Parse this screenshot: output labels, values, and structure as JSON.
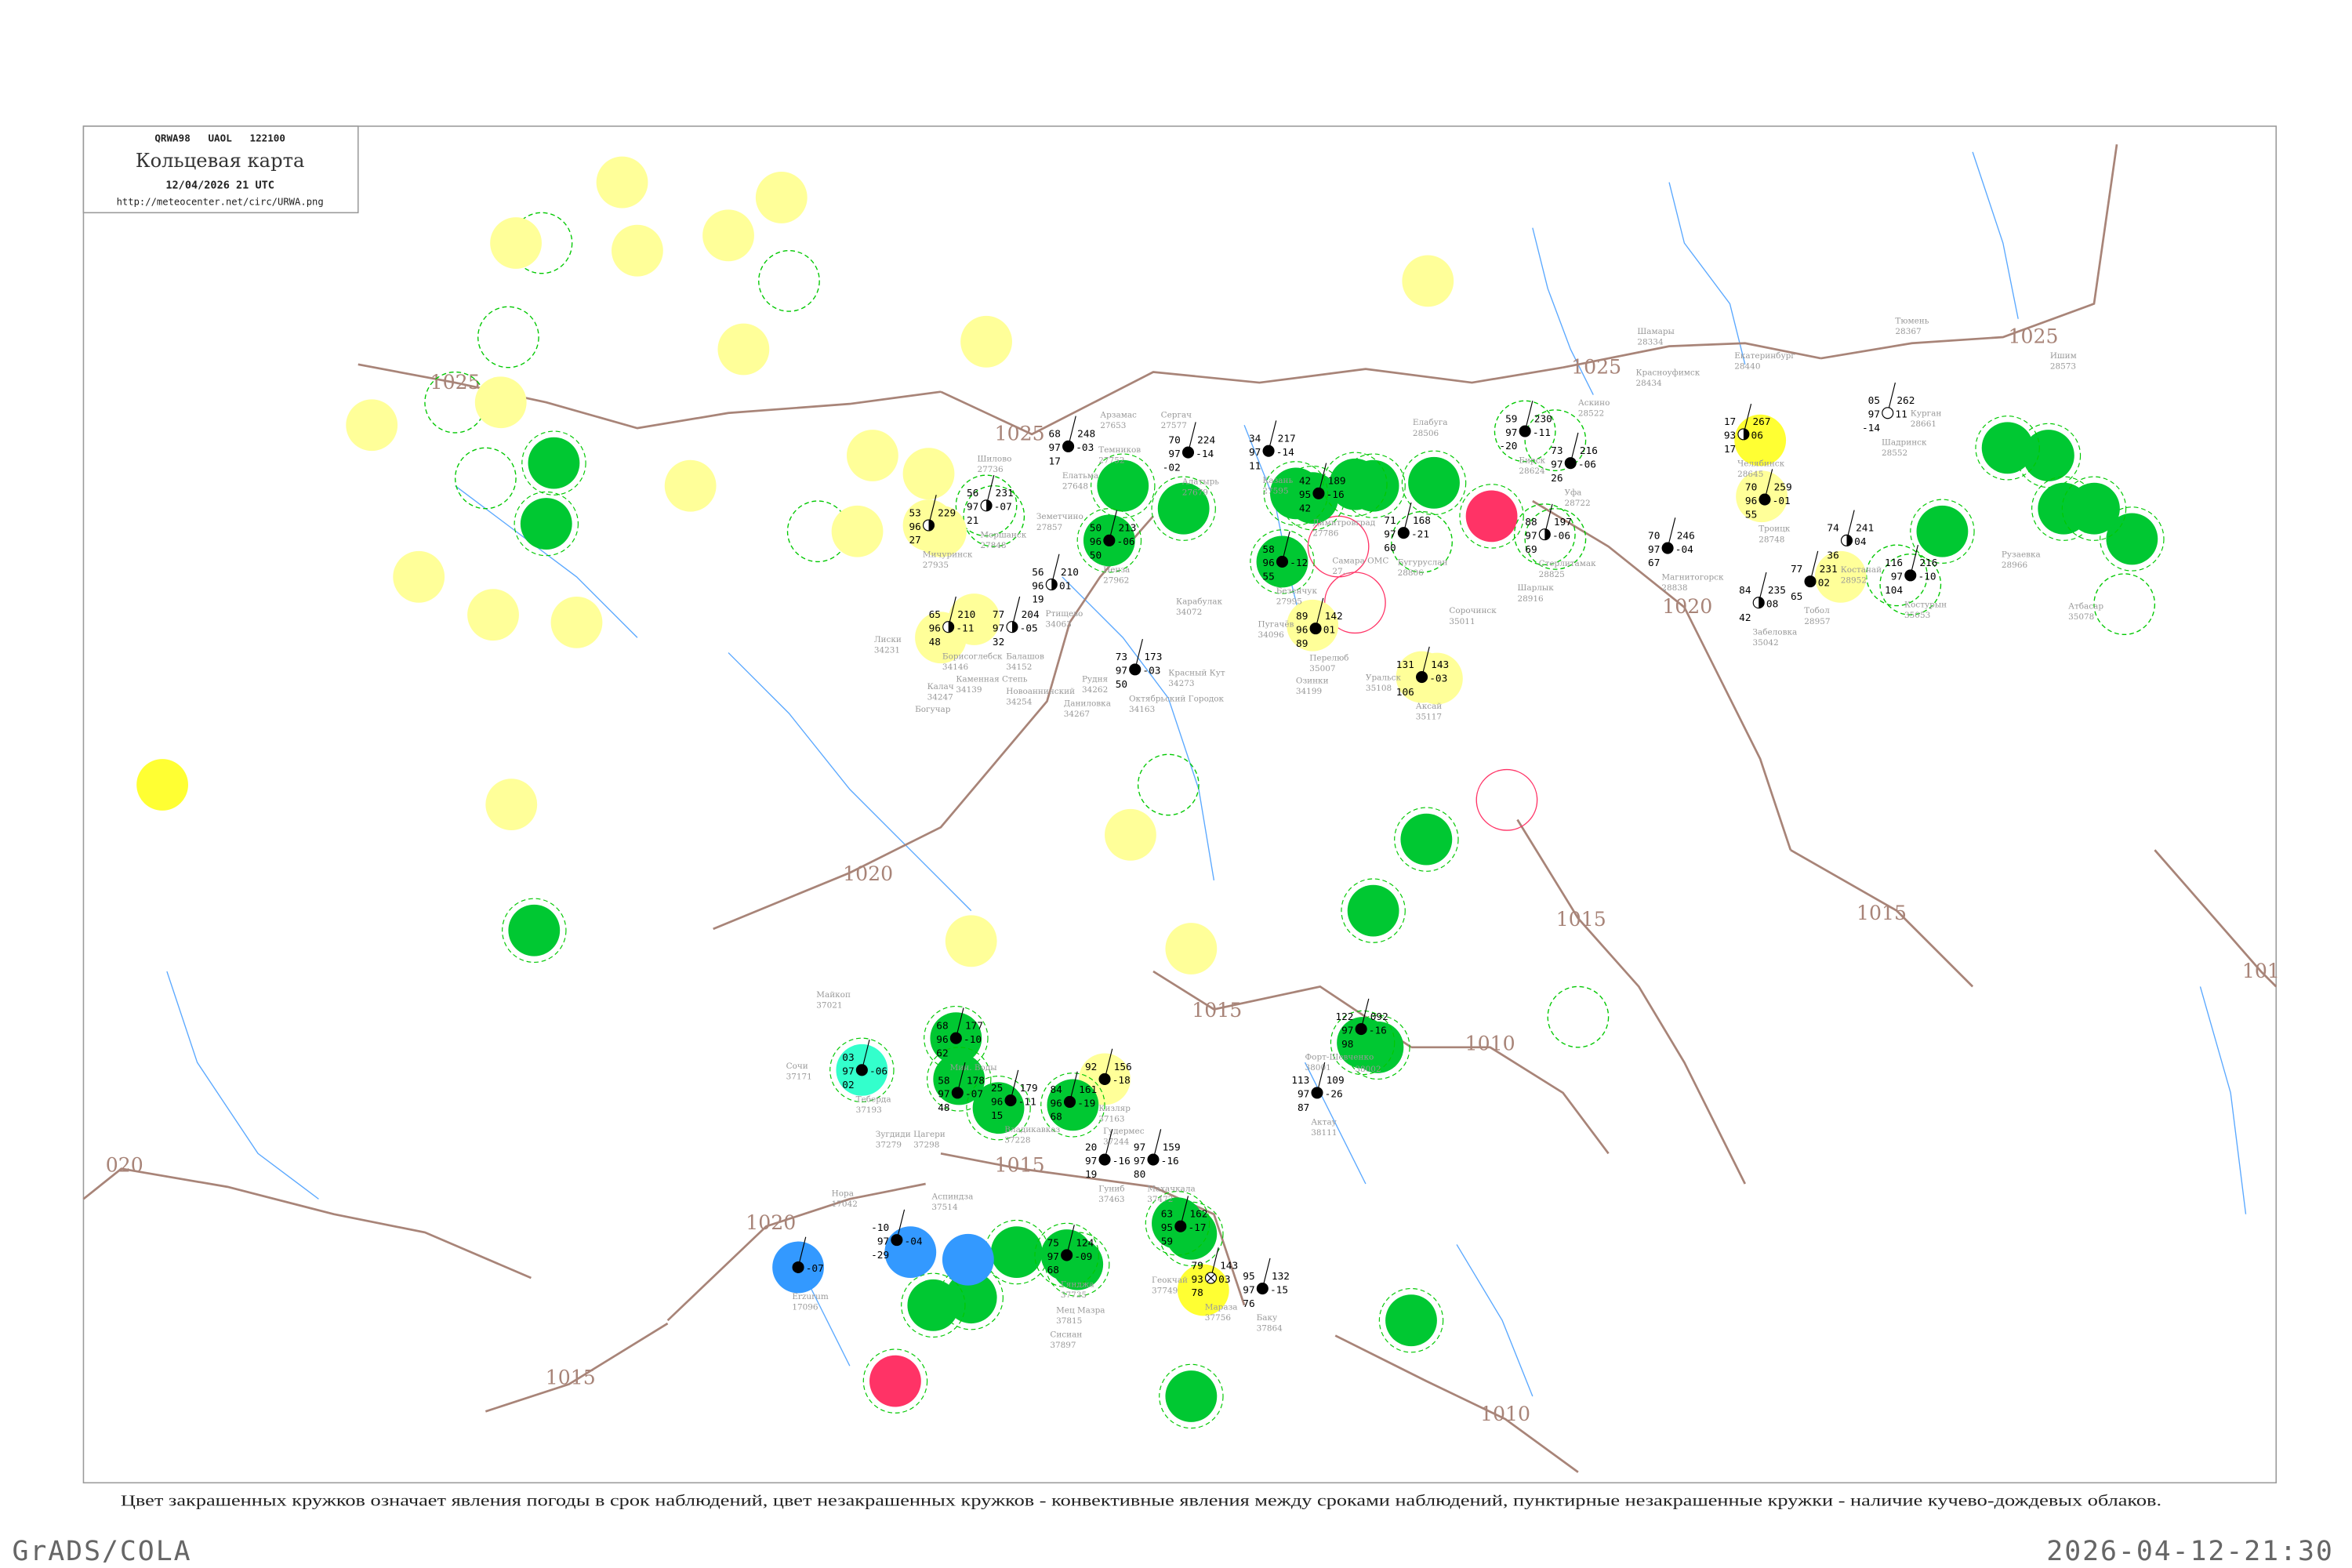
{
  "header": {
    "code": "QRWA98   UAOL   122100",
    "title": "Кольцевая карта",
    "date": "12/04/2026 21 UTC",
    "url": "http://meteocenter.net/circ/URWA.png"
  },
  "caption": "Цвет закрашенных кружков означает явления погоды в срок наблюдений, цвет незакрашенных кружков - конвективные явления между сроками наблюдений, пунктирные незакрашенные кружки - наличие кучево-дождевых облаков.",
  "footer": {
    "left": "GrADS/COLA",
    "right": "2026-04-12-21:30"
  },
  "colors": {
    "isobar": "#a88478",
    "river": "#5aa8ff",
    "green": "#00c832",
    "yellow": "#ffff33",
    "lightyellow": "#ffff99",
    "cyan": "#33ffcc",
    "blue": "#3399ff",
    "red": "#ff3366",
    "outline_green": "#00c800",
    "outline_red": "#ff3366"
  },
  "isobars": [
    {
      "label": "1025"
    },
    {
      "label": "1025"
    },
    {
      "label": "1025"
    },
    {
      "label": "1025"
    },
    {
      "label": "1020"
    },
    {
      "label": "1020"
    },
    {
      "label": "1020"
    },
    {
      "label": "020"
    },
    {
      "label": "1015"
    },
    {
      "label": "1015"
    },
    {
      "label": "1015"
    },
    {
      "label": "1015"
    },
    {
      "label": "1015"
    },
    {
      "label": "1010"
    },
    {
      "label": "1010"
    },
    {
      "label": "101"
    }
  ],
  "stations": [
    {
      "name": "Челябинск",
      "id": "28645",
      "t": "17",
      "p": "267",
      "vis": "93",
      "tend": "06",
      "td": "17",
      "cover": "half"
    },
    {
      "name": "Троицк",
      "id": "28748",
      "t": "70",
      "p": "259",
      "vis": "96",
      "tend": "-01",
      "td": "55",
      "cover": "overcast"
    },
    {
      "name": "Екатеринбург",
      "id": "28440"
    },
    {
      "name": "Курган",
      "id": "28661"
    },
    {
      "name": "Шадринск",
      "id": "28552",
      "t": "05",
      "p": "262",
      "vis": "97",
      "tend": "11",
      "td": "-14",
      "cover": "clear"
    },
    {
      "name": "Магнитогорск",
      "id": "28838",
      "t": "70",
      "p": "246",
      "vis": "97",
      "tend": "-04",
      "td": "67",
      "cover": "overcast"
    },
    {
      "name": "Стерлитамак",
      "id": "28825",
      "t": "88",
      "p": "197",
      "vis": "97",
      "tend": "-06",
      "td": "69",
      "cover": "half"
    },
    {
      "name": "Бирск",
      "id": "28624",
      "t": "59",
      "p": "230",
      "vis": "97",
      "tend": "-11",
      "td": "-20",
      "cover": "overcast"
    },
    {
      "name": "Костанай",
      "id": "28952",
      "t": "74",
      "p": "241",
      "vis": "",
      "tend": "04",
      "td": "36",
      "cover": "half"
    },
    {
      "name": "Тобол",
      "id": "28957",
      "t": "77",
      "p": "231",
      "vis": "",
      "tend": "02",
      "td": "65",
      "cover": "overcast"
    },
    {
      "name": "Забеловка",
      "id": "35042",
      "t": "84",
      "p": "235",
      "vis": "",
      "tend": "08",
      "td": "42",
      "cover": "half"
    },
    {
      "name": "Костурын",
      "id": "35053",
      "t": "116",
      "p": "216",
      "vis": "97",
      "tend": "-10",
      "td": "104",
      "cover": "overcast"
    },
    {
      "name": "Аскино",
      "id": "28522"
    },
    {
      "name": "Красноуфимск",
      "id": "28434"
    },
    {
      "name": "Шамары",
      "id": "28334"
    },
    {
      "name": "Тюмень",
      "id": "28367"
    },
    {
      "name": "Ишим",
      "id": "28573"
    },
    {
      "name": "Уфа",
      "id": "28722",
      "t": "73",
      "p": "216",
      "vis": "97",
      "tend": "-06",
      "td": "26",
      "cover": "overcast"
    },
    {
      "name": "Шарлык",
      "id": "28916"
    },
    {
      "name": "Рузаевка",
      "id": "28966"
    },
    {
      "name": "Атбасар",
      "id": "35078"
    },
    {
      "name": "Пенза",
      "id": "27962",
      "t": "50",
      "p": "213",
      "vis": "96",
      "tend": "-06",
      "td": "50",
      "cover": "overcast"
    },
    {
      "name": "Мичуринск",
      "id": "27935",
      "t": "53",
      "p": "229",
      "vis": "96",
      "tend": "",
      "td": "27",
      "cover": "half"
    },
    {
      "name": "Моршанск",
      "id": "27848",
      "t": "56",
      "p": "231",
      "vis": "97",
      "tend": "-07",
      "td": "21",
      "cover": "half"
    },
    {
      "name": "Земетчино",
      "id": "27857"
    },
    {
      "name": "Елатьма",
      "id": "27648",
      "t": "68",
      "p": "248",
      "vis": "97",
      "tend": "-03",
      "td": "17",
      "cover": "overcast"
    },
    {
      "name": "Темников",
      "id": "27752"
    },
    {
      "name": "Арзамас",
      "id": "27653"
    },
    {
      "name": "Сергач",
      "id": "27577"
    },
    {
      "name": "Алатырь",
      "id": "27679",
      "t": "70",
      "p": "224",
      "vis": "97",
      "tend": "-14",
      "td": "-02",
      "cover": "overcast"
    },
    {
      "name": "Казань",
      "id": "27595",
      "t": "34",
      "p": "217",
      "vis": "97",
      "tend": "-14",
      "td": "11",
      "cover": "overcast"
    },
    {
      "name": "Елабуга",
      "id": "28506"
    },
    {
      "name": "Бугуруслан",
      "id": "28806",
      "t": "71",
      "p": "168",
      "vis": "97",
      "tend": "-21",
      "td": "60",
      "cover": "overcast"
    },
    {
      "name": "Безенчук",
      "id": "27995",
      "t": "58",
      "p": "",
      "vis": "96",
      "tend": "-12",
      "td": "55",
      "cover": "overcast"
    },
    {
      "name": "Димитровград",
      "id": "27786",
      "t": "42",
      "p": "189",
      "vis": "95",
      "tend": "-16",
      "td": "42",
      "cover": "overcast"
    },
    {
      "name": "Самара ОМС",
      "id": "27..."
    },
    {
      "name": "Перелюб",
      "id": "35007",
      "t": "89",
      "p": "142",
      "vis": "96",
      "tend": "01",
      "td": "89",
      "cover": "overcast"
    },
    {
      "name": "Пугачёв",
      "id": "34096"
    },
    {
      "name": "Озинки",
      "id": "34199"
    },
    {
      "name": "Уральск",
      "id": "35108"
    },
    {
      "name": "Аксай",
      "id": "35117",
      "t": "131",
      "p": "143",
      "vis": "",
      "tend": "-03",
      "td": "106",
      "cover": "overcast"
    },
    {
      "name": "Сорочинск",
      "id": "35011"
    },
    {
      "name": "Ртищево",
      "id": "34063",
      "t": "56",
      "p": "210",
      "vis": "96",
      "tend": "01",
      "td": "19",
      "cover": "half"
    },
    {
      "name": "Балашов",
      "id": "34152",
      "t": "77",
      "p": "204",
      "vis": "97",
      "tend": "-05",
      "td": "32",
      "cover": "half"
    },
    {
      "name": "Борисоглебск",
      "id": "34146",
      "t": "65",
      "p": "210",
      "vis": "96",
      "tend": "-11",
      "td": "48",
      "cover": "half"
    },
    {
      "name": "Каменная Степь",
      "id": "34139"
    },
    {
      "name": "Лиски",
      "id": "34231"
    },
    {
      "name": "Калач",
      "id": "34247"
    },
    {
      "name": "Карабулак",
      "id": "34072"
    },
    {
      "name": "Октябрьский Городок",
      "id": "34163",
      "t": "73",
      "p": "173",
      "vis": "97",
      "tend": "-03",
      "td": "50",
      "cover": "overcast"
    },
    {
      "name": "Красный Кут",
      "id": "34273"
    },
    {
      "name": "Рудня",
      "id": "34262"
    },
    {
      "name": "Новоаннинский",
      "id": "34254"
    },
    {
      "name": "Даниловка",
      "id": "34267"
    },
    {
      "name": "Богучар",
      "id": ""
    },
    {
      "name": "Шилово",
      "id": "27736"
    },
    {
      "name": "Майкоп",
      "id": "37021"
    },
    {
      "name": "Сочи",
      "id": "37171"
    },
    {
      "name": "Теберда",
      "id": "37193",
      "t": "03",
      "p": "",
      "vis": "97",
      "tend": "-06",
      "td": "02",
      "cover": "overcast"
    },
    {
      "name": "Мин. Воды",
      "id": "",
      "t": "68",
      "p": "177",
      "vis": "96",
      "tend": "-10",
      "td": "62",
      "cover": "overcast"
    },
    {
      "name": "",
      "id": "",
      "t": "58",
      "p": "178",
      "vis": "97",
      "tend": "-07",
      "td": "48",
      "cover": "overcast"
    },
    {
      "name": "Владикавказ",
      "id": "37228",
      "t": "25",
      "p": "179",
      "vis": "96",
      "tend": "-11",
      "td": "15",
      "cover": "overcast"
    },
    {
      "name": "",
      "id": "",
      "t": "84",
      "p": "161",
      "vis": "96",
      "tend": "-19",
      "td": "68",
      "cover": "overcast"
    },
    {
      "name": "Кизляр",
      "id": "37163",
      "t": "92",
      "p": "156",
      "vis": "",
      "tend": "-18",
      "td": "",
      "cover": "overcast"
    },
    {
      "name": "Гудермес",
      "id": "37244"
    },
    {
      "name": "Махачкала",
      "id": "37472",
      "t": "97",
      "p": "159",
      "vis": "97",
      "tend": "-16",
      "td": "80",
      "cover": "overcast"
    },
    {
      "name": "Гуниб",
      "id": "37463",
      "t": "20",
      "p": "",
      "vis": "97",
      "tend": "-16",
      "td": "19",
      "cover": "overcast"
    },
    {
      "name": "Зугдиди",
      "id": "37279"
    },
    {
      "name": "Цагери",
      "id": "37298"
    },
    {
      "name": "Нора",
      "id": "17042"
    },
    {
      "name": "Аспиндза",
      "id": "37514"
    },
    {
      "name": "Гянджа",
      "id": "37735",
      "t": "75",
      "p": "124",
      "vis": "97",
      "tend": "-09",
      "td": "68",
      "cover": "overcast"
    },
    {
      "name": "Геокчай",
      "id": "37749"
    },
    {
      "name": "Мараза",
      "id": "37756",
      "t": "79",
      "p": "143",
      "vis": "93",
      "tend": "03",
      "td": "78",
      "cover": "obscured"
    },
    {
      "name": "Баку",
      "id": "37864",
      "t": "95",
      "p": "132",
      "vis": "97",
      "tend": "-15",
      "td": "76",
      "cover": "overcast"
    },
    {
      "name": "",
      "id": "",
      "t": "63",
      "p": "162",
      "vis": "95",
      "tend": "-17",
      "td": "59",
      "cover": "overcast"
    },
    {
      "name": "Форт-Шевченко",
      "id": "38001"
    },
    {
      "name": "Актау",
      "id": "38111",
      "t": "113",
      "p": "109",
      "vis": "97",
      "tend": "-26",
      "td": "87",
      "cover": "overcast"
    },
    {
      "name": "",
      "id": "38002",
      "t": "122",
      "p": "092",
      "vis": "97",
      "tend": "-16",
      "td": "98",
      "cover": "overcast"
    },
    {
      "name": "Erzurum",
      "id": "17096",
      "t": "",
      "p": "",
      "vis": "",
      "tend": "-07",
      "td": "",
      "cover": "overcast"
    },
    {
      "name": "",
      "id": "",
      "t": "-10",
      "p": "",
      "vis": "97",
      "tend": "-04",
      "td": "-29",
      "cover": "overcast"
    },
    {
      "name": "Сисиан",
      "id": "37897"
    },
    {
      "name": "Мец Мазра",
      "id": "37815"
    }
  ]
}
